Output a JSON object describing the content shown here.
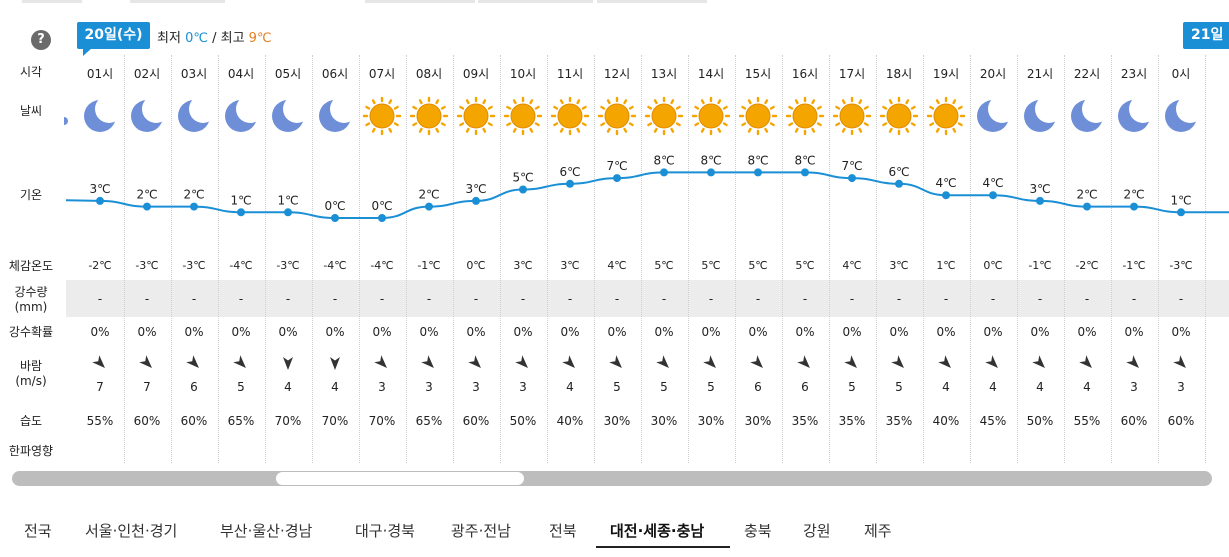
{
  "header": {
    "help_label": "?",
    "date_badge": "20일(수)",
    "next_badge": "21일",
    "min_label": "최저",
    "min_value": "0℃",
    "separator": "/",
    "max_label": "최고",
    "max_value": "9℃"
  },
  "row_labels": {
    "time": "시각",
    "weather": "날씨",
    "temp": "기온",
    "feels": "체감온도",
    "precip_line1": "강수량",
    "precip_line2": "(mm)",
    "prob": "강수확률",
    "wind_line1": "바람",
    "wind_line2": "(m/s)",
    "humidity": "습도",
    "cold": "한파영향"
  },
  "hours": [
    "01시",
    "02시",
    "03시",
    "04시",
    "05시",
    "06시",
    "07시",
    "08시",
    "09시",
    "10시",
    "11시",
    "12시",
    "13시",
    "14시",
    "15시",
    "16시",
    "17시",
    "18시",
    "19시",
    "20시",
    "21시",
    "22시",
    "23시",
    "0시"
  ],
  "weather_icons": [
    "moon-icon",
    "moon-icon",
    "moon-icon",
    "moon-icon",
    "moon-icon",
    "moon-icon",
    "sun-icon",
    "sun-icon",
    "sun-icon",
    "sun-icon",
    "sun-icon",
    "sun-icon",
    "sun-icon",
    "sun-icon",
    "sun-icon",
    "sun-icon",
    "sun-icon",
    "sun-icon",
    "sun-icon",
    "moon-icon",
    "moon-icon",
    "moon-icon",
    "moon-icon",
    "moon-icon"
  ],
  "temps": [
    3,
    2,
    2,
    1,
    1,
    0,
    0,
    2,
    3,
    5,
    6,
    7,
    8,
    8,
    8,
    8,
    7,
    6,
    4,
    4,
    3,
    2,
    2,
    1
  ],
  "temp_labels": [
    "3℃",
    "2℃",
    "2℃",
    "1℃",
    "1℃",
    "0℃",
    "0℃",
    "2℃",
    "3℃",
    "5℃",
    "6℃",
    "7℃",
    "8℃",
    "8℃",
    "8℃",
    "8℃",
    "7℃",
    "6℃",
    "4℃",
    "4℃",
    "3℃",
    "2℃",
    "2℃",
    "1℃"
  ],
  "feels": [
    "-2℃",
    "-3℃",
    "-3℃",
    "-4℃",
    "-3℃",
    "-4℃",
    "-4℃",
    "-1℃",
    "0℃",
    "3℃",
    "3℃",
    "4℃",
    "5℃",
    "5℃",
    "5℃",
    "5℃",
    "4℃",
    "3℃",
    "1℃",
    "0℃",
    "-1℃",
    "-2℃",
    "-1℃",
    "-3℃"
  ],
  "precip": [
    "-",
    "-",
    "-",
    "-",
    "-",
    "-",
    "-",
    "-",
    "-",
    "-",
    "-",
    "-",
    "-",
    "-",
    "-",
    "-",
    "-",
    "-",
    "-",
    "-",
    "-",
    "-",
    "-",
    "-"
  ],
  "prob": [
    "0%",
    "0%",
    "0%",
    "0%",
    "0%",
    "0%",
    "0%",
    "0%",
    "0%",
    "0%",
    "0%",
    "0%",
    "0%",
    "0%",
    "0%",
    "0%",
    "0%",
    "0%",
    "0%",
    "0%",
    "0%",
    "0%",
    "0%",
    "0%"
  ],
  "wind_dir": [
    "NW",
    "NW",
    "NW",
    "NW",
    "N",
    "N",
    "NW",
    "NW",
    "NW",
    "NW",
    "NW",
    "NW",
    "NW",
    "NW",
    "NW",
    "NW",
    "NW",
    "NW",
    "NW",
    "NW",
    "NW",
    "NW",
    "NW",
    "NW"
  ],
  "wind_speed": [
    "7",
    "7",
    "6",
    "5",
    "4",
    "4",
    "3",
    "3",
    "3",
    "3",
    "4",
    "5",
    "5",
    "5",
    "6",
    "6",
    "5",
    "5",
    "4",
    "4",
    "4",
    "4",
    "3",
    "3"
  ],
  "humidity": [
    "55%",
    "60%",
    "60%",
    "65%",
    "70%",
    "70%",
    "70%",
    "65%",
    "60%",
    "50%",
    "40%",
    "30%",
    "30%",
    "30%",
    "30%",
    "35%",
    "35%",
    "35%",
    "40%",
    "45%",
    "50%",
    "55%",
    "60%",
    "60%"
  ],
  "regions": [
    "전국",
    "서울·인천·경기",
    "부산·울산·경남",
    "대구·경북",
    "광주·전남",
    "전북",
    "대전·세종·충남",
    "충북",
    "강원",
    "제주"
  ],
  "active_region": "대전·세종·충남",
  "colors": {
    "accent": "#1a8fd6",
    "line": "#1a8fd6",
    "max": "#e67e22",
    "sun": "#f5a500",
    "moon": "#6e8fd8"
  }
}
